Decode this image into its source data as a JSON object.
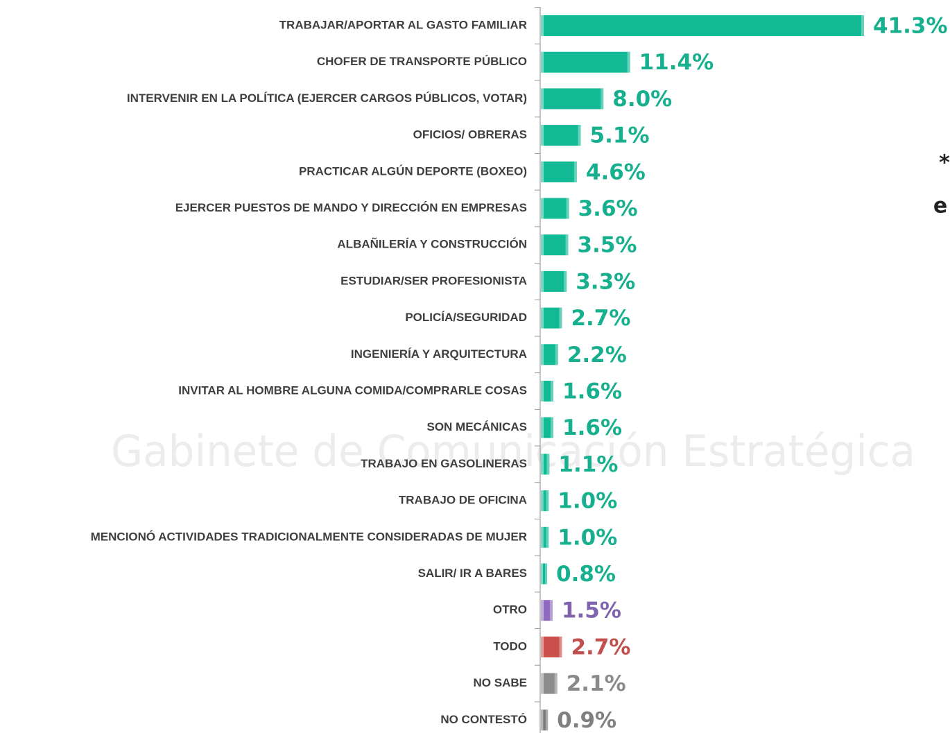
{
  "chart_data": {
    "type": "barh",
    "watermark": "Gabinete de Comunicación Estratégica",
    "annotations": [
      "*",
      "e"
    ],
    "categories": [
      "TRABAJAR/APORTAR AL GASTO FAMILIAR",
      "CHOFER DE TRANSPORTE PÚBLICO",
      "INTERVENIR EN LA POLÍTICA (EJERCER CARGOS PÚBLICOS, VOTAR)",
      "OFICIOS/ OBRERAS",
      "PRACTICAR ALGÚN DEPORTE (BOXEO)",
      "EJERCER PUESTOS DE MANDO Y DIRECCIÓN EN EMPRESAS",
      "ALBAÑILERÍA Y CONSTRUCCIÓN",
      "ESTUDIAR/SER PROFESIONISTA",
      "POLICÍA/SEGURIDAD",
      "INGENIERÍA Y ARQUITECTURA",
      "INVITAR AL HOMBRE ALGUNA COMIDA/COMPRARLE COSAS",
      "SON MECÁNICAS",
      "TRABAJO EN GASOLINERAS",
      "TRABAJO DE OFICINA",
      "MENCIONÓ ACTIVIDADES TRADICIONALMENTE CONSIDERADAS DE MUJER",
      "SALIR/ IR A BARES",
      "OTRO",
      "TODO",
      "NO SABE",
      "NO CONTESTÓ"
    ],
    "values": [
      41.3,
      11.4,
      8.0,
      5.1,
      4.6,
      3.6,
      3.5,
      3.3,
      2.7,
      2.2,
      1.6,
      1.6,
      1.1,
      1.0,
      1.0,
      0.8,
      1.5,
      2.7,
      2.1,
      0.9
    ],
    "value_labels": [
      "41.3%",
      "11.4%",
      "8.0%",
      "5.1%",
      "4.6%",
      "3.6%",
      "3.5%",
      "3.3%",
      "2.7%",
      "2.2%",
      "1.6%",
      "1.6%",
      "1.1%",
      "1.0%",
      "1.0%",
      "0.8%",
      "1.5%",
      "2.7%",
      "2.1%",
      "0.9%"
    ],
    "colors": [
      "#12b995",
      "#12b995",
      "#12b995",
      "#12b995",
      "#12b995",
      "#12b995",
      "#12b995",
      "#12b995",
      "#12b995",
      "#12b995",
      "#12b995",
      "#12b995",
      "#12b995",
      "#12b995",
      "#12b995",
      "#12b995",
      "#8e6bbf",
      "#c9504b",
      "#8c8c8c",
      "#7a7a7a"
    ],
    "label_colors": [
      "#17b08f",
      "#17b08f",
      "#17b08f",
      "#17b08f",
      "#17b08f",
      "#17b08f",
      "#17b08f",
      "#17b08f",
      "#17b08f",
      "#17b08f",
      "#17b08f",
      "#17b08f",
      "#17b08f",
      "#17b08f",
      "#17b08f",
      "#17b08f",
      "#8062ad",
      "#c0504d",
      "#8a8a8a",
      "#808080"
    ]
  }
}
